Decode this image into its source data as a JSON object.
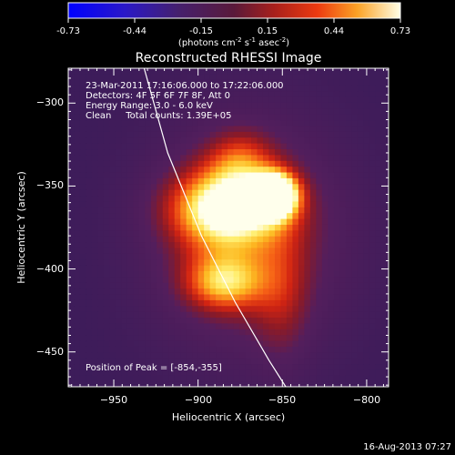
{
  "colorbar": {
    "ticks": [
      "-0.73",
      "-0.44",
      "-0.15",
      "0.15",
      "0.44",
      "0.73"
    ],
    "unit_prefix": "(photons cm",
    "unit_exp1": "-2",
    "unit_mid": " s",
    "unit_exp2": "-1",
    "unit_mid2": " asec",
    "unit_exp3": "-2",
    "unit_suffix": ")"
  },
  "chart_data": {
    "type": "heatmap",
    "title": "Reconstructed RHESSI Image",
    "xlabel": "Heliocentric X (arcsec)",
    "ylabel": "Heliocentric Y (arcsec)",
    "xlim": [
      -977,
      -787
    ],
    "ylim": [
      -471,
      -279
    ],
    "x_ticks": [
      -950,
      -900,
      -850,
      -800
    ],
    "y_ticks": [
      -450,
      -400,
      -350,
      -300
    ],
    "x_tick_labels": [
      "−950",
      "−900",
      "−850",
      "−800"
    ],
    "y_tick_labels": [
      "−450",
      "−400",
      "−350",
      "−300"
    ],
    "colormap": "rhessi-hot",
    "value_range": [
      -0.73,
      0.73
    ],
    "peak": {
      "x": -854,
      "y": -355,
      "value": 0.73
    },
    "sources": [
      {
        "x": -854,
        "y": -355,
        "sx": 9,
        "sy": 9,
        "amp": 0.75
      },
      {
        "x": -884,
        "y": -363,
        "sx": 24,
        "sy": 17,
        "amp": 0.55
      },
      {
        "x": -885,
        "y": -408,
        "sx": 17,
        "sy": 12,
        "amp": 0.38
      },
      {
        "x": -875,
        "y": -333,
        "sx": 14,
        "sy": 13,
        "amp": 0.22
      },
      {
        "x": -850,
        "y": -420,
        "sx": 12,
        "sy": 30,
        "amp": 0.15
      },
      {
        "x": -870,
        "y": -380,
        "sx": 45,
        "sy": 55,
        "amp": 0.35
      }
    ],
    "limb_curve": [
      [
        -932,
        -279
      ],
      [
        -918,
        -330
      ],
      [
        -898,
        -380
      ],
      [
        -878,
        -420
      ],
      [
        -858,
        -455
      ],
      [
        -848,
        -471
      ]
    ],
    "annotations": [
      "23-Mar-2011 17:16:06.000 to 17:22:06.000",
      "Detectors: 4F 5F 6F 7F 8F, Att 0",
      "Energy Range: 3.0 - 6.0 keV",
      "Clean     Total counts: 1.39E+05"
    ],
    "peak_label": "Position of Peak = [-854,-355]"
  },
  "footer": {
    "date": "16-Aug-2013 07:27"
  }
}
